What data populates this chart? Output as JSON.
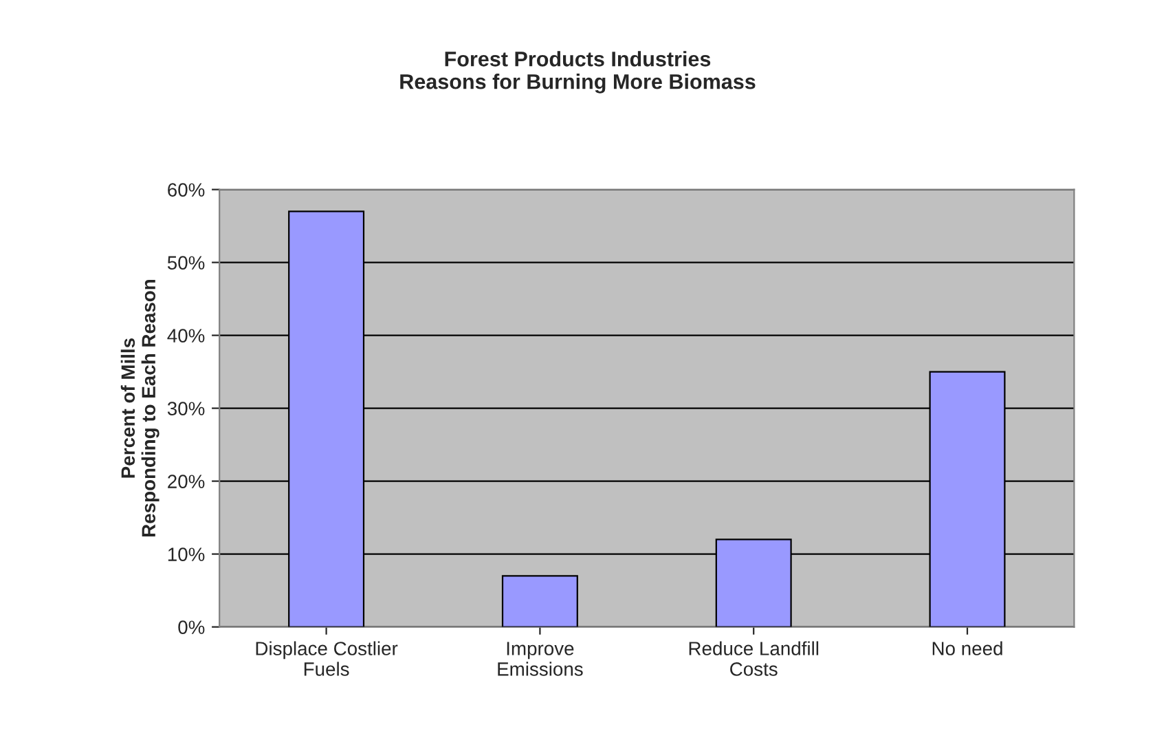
{
  "chart_data": {
    "type": "bar",
    "title": "Forest Products Industries\nReasons for Burning More Biomass",
    "ylabel": "Percent of Mills\nResponding to Each Reason",
    "categories": [
      "Displace Costlier\nFuels",
      "Improve\nEmissions",
      "Reduce Landfill\nCosts",
      "No need"
    ],
    "values": [
      57,
      7,
      12,
      35
    ],
    "color": "#9999ff",
    "ylim": [
      0,
      60
    ],
    "yticks": [
      {
        "value": 0,
        "label": "0%"
      },
      {
        "value": 10,
        "label": "10%"
      },
      {
        "value": 20,
        "label": "20%"
      },
      {
        "value": 30,
        "label": "30%"
      },
      {
        "value": 40,
        "label": "40%"
      },
      {
        "value": 50,
        "label": "50%"
      },
      {
        "value": 60,
        "label": "60%"
      }
    ],
    "grid": "y"
  }
}
